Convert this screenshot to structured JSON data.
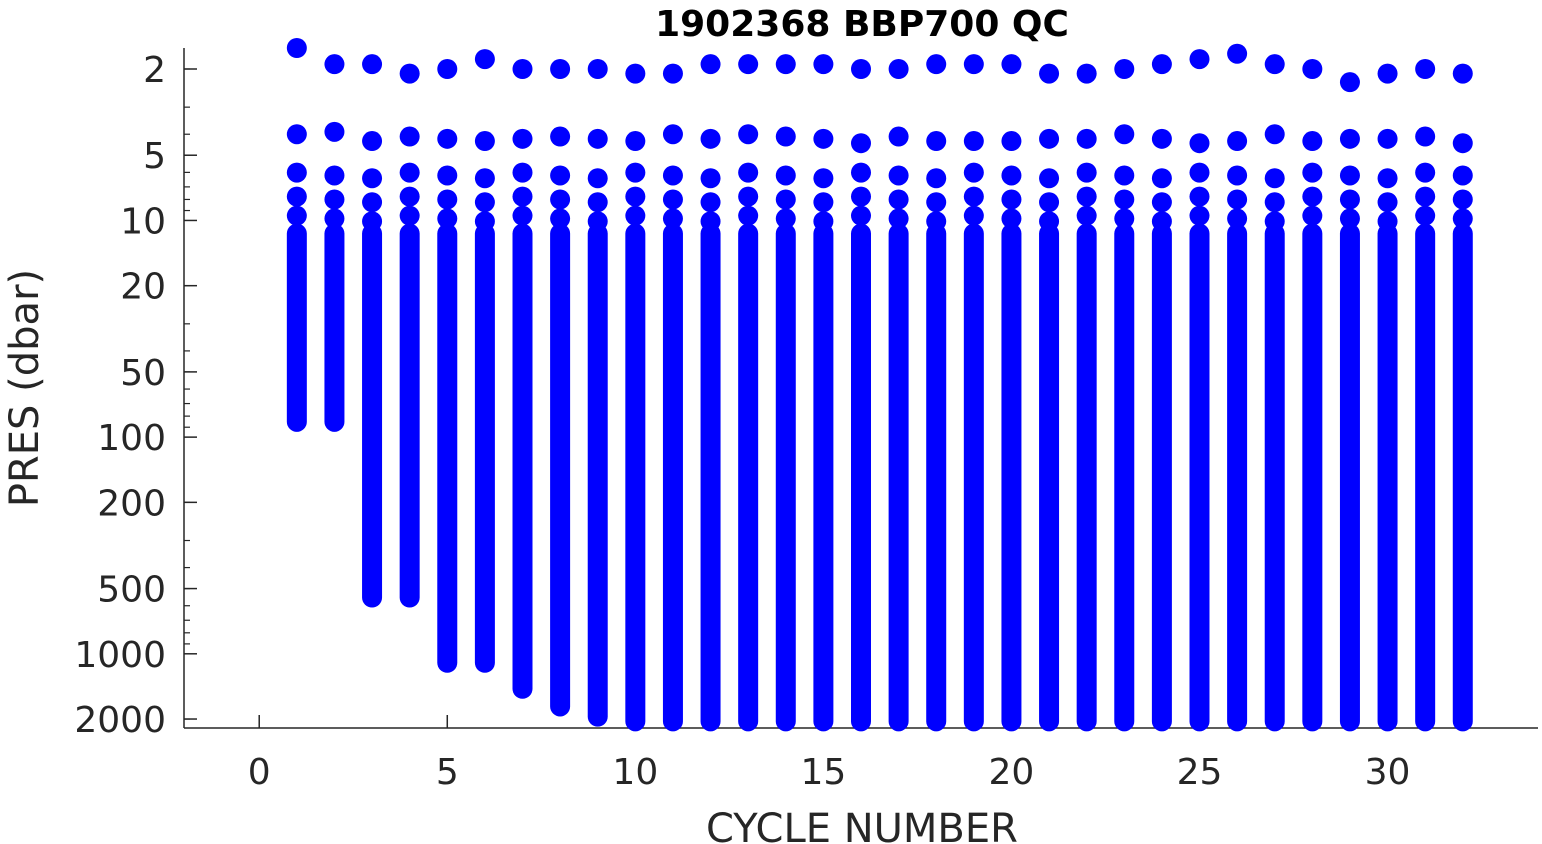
{
  "chart_data": {
    "type": "scatter",
    "title": "1902368 BBP700 QC",
    "xlabel": "CYCLE NUMBER",
    "ylabel": "PRES (dbar)",
    "xlim": [
      -2,
      34
    ],
    "ylim": [
      1.6,
      2200
    ],
    "y_scale": "log",
    "y_reversed": true,
    "grid": false,
    "legend": "none",
    "x_ticks": [
      0,
      5,
      10,
      15,
      20,
      25,
      30
    ],
    "x_tick_labels": [
      "0",
      "5",
      "10",
      "15",
      "20",
      "25",
      "30"
    ],
    "y_ticks": [
      2,
      5,
      10,
      20,
      50,
      100,
      200,
      500,
      1000,
      2000
    ],
    "y_tick_labels": [
      "2",
      "5",
      "10",
      "20",
      "50",
      "100",
      "200",
      "500",
      "1000",
      "2000"
    ],
    "marker_color": "#0000ff",
    "series": [
      {
        "cycles": [
          1,
          2,
          3,
          4,
          5,
          6,
          7,
          8,
          9,
          10,
          11,
          12,
          13,
          14,
          15,
          16,
          17,
          18,
          19,
          20,
          21,
          22,
          23,
          24,
          25,
          26,
          27,
          28,
          29,
          30,
          31,
          32
        ],
        "top_pressure": [
          1.6,
          1.9,
          1.9,
          2.1,
          2.0,
          1.8,
          2.0,
          2.0,
          2.0,
          2.1,
          2.1,
          1.9,
          1.9,
          1.9,
          1.9,
          2.0,
          2.0,
          1.9,
          1.9,
          1.9,
          2.1,
          2.1,
          2.0,
          1.9,
          1.8,
          1.7,
          1.9,
          2.0,
          2.3,
          2.1,
          2.0,
          2.1
        ],
        "second_pressure": [
          4.0,
          3.9,
          4.3,
          4.1,
          4.2,
          4.3,
          4.2,
          4.1,
          4.2,
          4.3,
          4.0,
          4.2,
          4.0,
          4.1,
          4.2,
          4.4,
          4.1,
          4.3,
          4.3,
          4.3,
          4.2,
          4.2,
          4.0,
          4.2,
          4.4,
          4.3,
          4.0,
          4.3,
          4.2,
          4.2,
          4.1,
          4.4
        ],
        "max_pressure": [
          85,
          85,
          550,
          550,
          1100,
          1100,
          1450,
          1750,
          1950,
          2050,
          2050,
          2050,
          2050,
          2050,
          2050,
          2050,
          2050,
          2050,
          2050,
          2050,
          2050,
          2050,
          2050,
          2050,
          2050,
          2050,
          2050,
          2050,
          2050,
          2050,
          2050,
          2050
        ]
      }
    ]
  }
}
